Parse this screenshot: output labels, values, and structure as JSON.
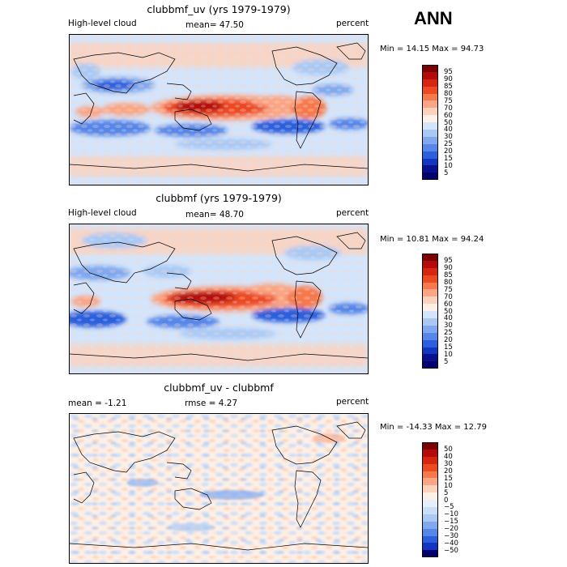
{
  "season": "ANN",
  "panels": [
    {
      "title": "clubbmf_uv (yrs 1979-1979)",
      "left_label": "High-level cloud",
      "mean_text": "mean=  47.50",
      "units": "percent",
      "minmax": "Min =  14.15 Max =  94.73",
      "levels": [
        "95",
        "90",
        "85",
        "80",
        "75",
        "70",
        "60",
        "50",
        "40",
        "30",
        "25",
        "20",
        "15",
        "10",
        "5"
      ]
    },
    {
      "title": "clubbmf (yrs 1979-1979)",
      "left_label": "High-level cloud",
      "mean_text": "mean=  48.70",
      "units": "percent",
      "minmax": "Min =  10.81 Max =  94.24",
      "levels": [
        "95",
        "90",
        "85",
        "80",
        "75",
        "70",
        "60",
        "50",
        "40",
        "30",
        "25",
        "20",
        "15",
        "10",
        "5"
      ]
    },
    {
      "title": "clubbmf_uv - clubbmf",
      "left_label": "mean =  -1.21",
      "mean_text": "rmse =   4.27",
      "units": "percent",
      "minmax": "Min = -14.33 Max =  12.79",
      "levels": [
        "50",
        "40",
        "30",
        "20",
        "15",
        "10",
        "5",
        "0",
        "−5",
        "−10",
        "−15",
        "−20",
        "−30",
        "−40",
        "−50"
      ]
    }
  ],
  "colors": {
    "abs_scale": [
      "#7b0000",
      "#b40a0a",
      "#d7260f",
      "#eb4a22",
      "#f6794c",
      "#fba584",
      "#fdd2bc",
      "#fdf0e6",
      "#d4e5fb",
      "#a9c9f4",
      "#7fa8ee",
      "#5686e8",
      "#2c5fdd",
      "#1235c2",
      "#08108f",
      "#00006e"
    ],
    "diff_scale": [
      "#7b0000",
      "#b40a0a",
      "#d7260f",
      "#eb4a22",
      "#f6794c",
      "#fba584",
      "#fdd2bc",
      "#fdf0e6",
      "#e6f0fc",
      "#cadefa",
      "#a9c9f4",
      "#7fa8ee",
      "#5686e8",
      "#2c5fdd",
      "#1235c2",
      "#00006e"
    ]
  },
  "chart_data": [
    {
      "type": "heatmap",
      "title": "clubbmf_uv (yrs 1979-1979)",
      "variable": "High-level cloud",
      "units": "percent",
      "mean": 47.5,
      "min": 14.15,
      "max": 94.73,
      "contour_levels": [
        5,
        10,
        15,
        20,
        25,
        30,
        40,
        50,
        60,
        70,
        75,
        80,
        85,
        90,
        95
      ],
      "features": [
        {
          "region": "Maritime Continent / West Pacific warm pool",
          "value_range": [
            80,
            95
          ]
        },
        {
          "region": "Subtropical East Pacific (southern hemisphere)",
          "value_range": [
            10,
            25
          ]
        },
        {
          "region": "Subtropical South Atlantic",
          "value_range": [
            15,
            30
          ]
        },
        {
          "region": "Tropical South America / Amazon",
          "value_range": [
            70,
            85
          ]
        },
        {
          "region": "North Africa / Sahara",
          "value_range": [
            15,
            30
          ]
        }
      ]
    },
    {
      "type": "heatmap",
      "title": "clubbmf (yrs 1979-1979)",
      "variable": "High-level cloud",
      "units": "percent",
      "mean": 48.7,
      "min": 10.81,
      "max": 94.24,
      "contour_levels": [
        5,
        10,
        15,
        20,
        25,
        30,
        40,
        50,
        60,
        70,
        75,
        80,
        85,
        90,
        95
      ],
      "features": [
        {
          "region": "Maritime Continent / West Pacific warm pool",
          "value_range": [
            80,
            95
          ]
        },
        {
          "region": "Subtropical East Pacific (southern hemisphere)",
          "value_range": [
            10,
            25
          ]
        },
        {
          "region": "Subtropical South Atlantic",
          "value_range": [
            15,
            30
          ]
        },
        {
          "region": "Tropical South America / Amazon",
          "value_range": [
            70,
            85
          ]
        },
        {
          "region": "North Africa / Sahara",
          "value_range": [
            10,
            30
          ]
        }
      ]
    },
    {
      "type": "heatmap",
      "title": "clubbmf_uv - clubbmf",
      "units": "percent",
      "mean": -1.21,
      "rmse": 4.27,
      "min": -14.33,
      "max": 12.79,
      "contour_levels": [
        -50,
        -40,
        -30,
        -20,
        -15,
        -10,
        -5,
        0,
        5,
        10,
        15,
        20,
        30,
        40,
        50
      ],
      "features": [
        {
          "region": "Global noisy field",
          "value_range": [
            -10,
            10
          ]
        }
      ]
    }
  ]
}
